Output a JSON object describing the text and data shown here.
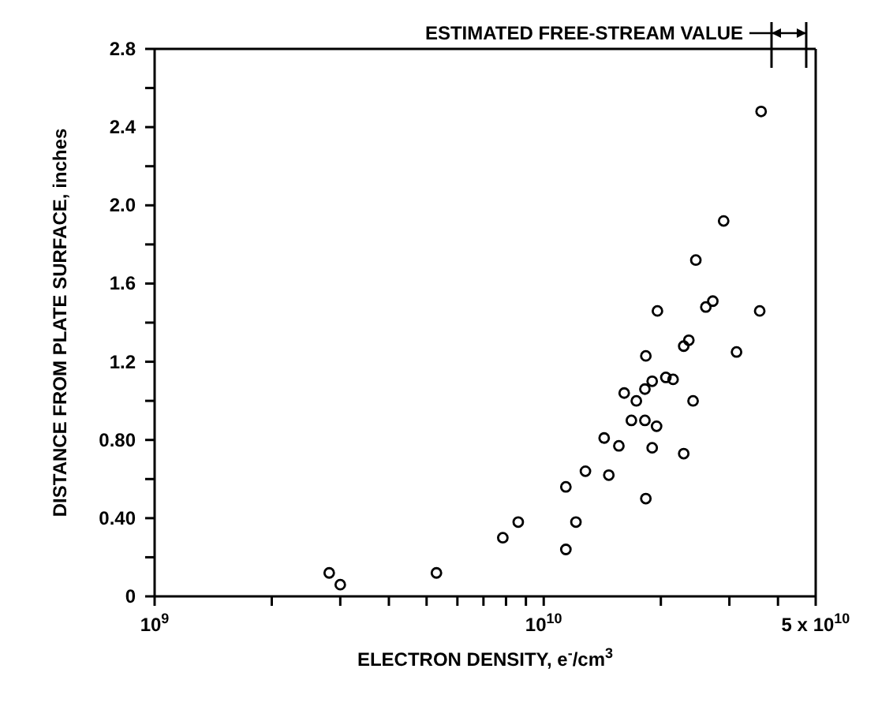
{
  "chart_data": {
    "type": "scatter",
    "xlabel": "ELECTRON DENSITY, e$^{-}$/cm$^{3}$",
    "ylabel": "DISTANCE FROM PLATE SURFACE, inches",
    "log": "x",
    "marker": "circle",
    "grid": false,
    "legend": false,
    "xlim": [
      1000000000,
      50000000000
    ],
    "xticks": [
      {
        "value": 1000000000,
        "label": "10$^{9}$"
      },
      {
        "value": 2000000000,
        "label": null
      },
      {
        "value": 3000000000,
        "label": null
      },
      {
        "value": 4000000000,
        "label": null
      },
      {
        "value": 5000000000,
        "label": null
      },
      {
        "value": 6000000000,
        "label": null
      },
      {
        "value": 7000000000,
        "label": null
      },
      {
        "value": 8000000000,
        "label": null
      },
      {
        "value": 9000000000,
        "label": null
      },
      {
        "value": 10000000000,
        "label": "10$^{10}$"
      },
      {
        "value": 20000000000,
        "label": null
      },
      {
        "value": 30000000000,
        "label": null
      },
      {
        "value": 40000000000,
        "label": null
      },
      {
        "value": 50000000000,
        "label": "5 x 10$^{10}$"
      }
    ],
    "ylim": [
      0,
      2.8
    ],
    "yticks": [
      {
        "value": 0,
        "label": "0"
      },
      {
        "value": 0.2,
        "label": null
      },
      {
        "value": 0.4,
        "label": "0.40"
      },
      {
        "value": 0.6,
        "label": null
      },
      {
        "value": 0.8,
        "label": "0.80"
      },
      {
        "value": 1.0,
        "label": null
      },
      {
        "value": 1.2,
        "label": "1.2"
      },
      {
        "value": 1.4,
        "label": null
      },
      {
        "value": 1.6,
        "label": "1.6"
      },
      {
        "value": 1.8,
        "label": null
      },
      {
        "value": 2.0,
        "label": "2.0"
      },
      {
        "value": 2.2,
        "label": null
      },
      {
        "value": 2.4,
        "label": "2.4"
      },
      {
        "value": 2.6,
        "label": null
      },
      {
        "value": 2.8,
        "label": "2.8"
      }
    ],
    "annotations": [
      "ESTIMATED FREE-STREAM VALUE"
    ],
    "series": [
      {
        "color": "#000000",
        "x": [
          2810000000,
          3000000000,
          5300000000,
          7850000000,
          8600000000,
          11400000000,
          11400000000,
          12100000000,
          12800000000,
          14300000000,
          14700000000,
          15600000000,
          18300000000,
          19000000000,
          19500000000,
          22900000000,
          18200000000,
          16800000000,
          16100000000,
          17300000000,
          18200000000,
          19000000000,
          20600000000,
          21500000000,
          24200000000,
          18300000000,
          22900000000,
          23600000000,
          31300000000,
          19600000000,
          26100000000,
          27200000000,
          35900000000,
          24600000000,
          29000000000,
          36200000000
        ],
        "values": [
          0.12,
          0.06,
          0.12,
          0.3,
          0.38,
          0.24,
          0.56,
          0.38,
          0.64,
          0.81,
          0.62,
          0.77,
          0.5,
          0.76,
          0.87,
          0.73,
          0.9,
          0.9,
          1.04,
          1.0,
          1.06,
          1.1,
          1.12,
          1.11,
          1.0,
          1.23,
          1.28,
          1.31,
          1.25,
          1.46,
          1.48,
          1.51,
          1.46,
          1.72,
          1.92,
          2.48
        ]
      }
    ]
  }
}
